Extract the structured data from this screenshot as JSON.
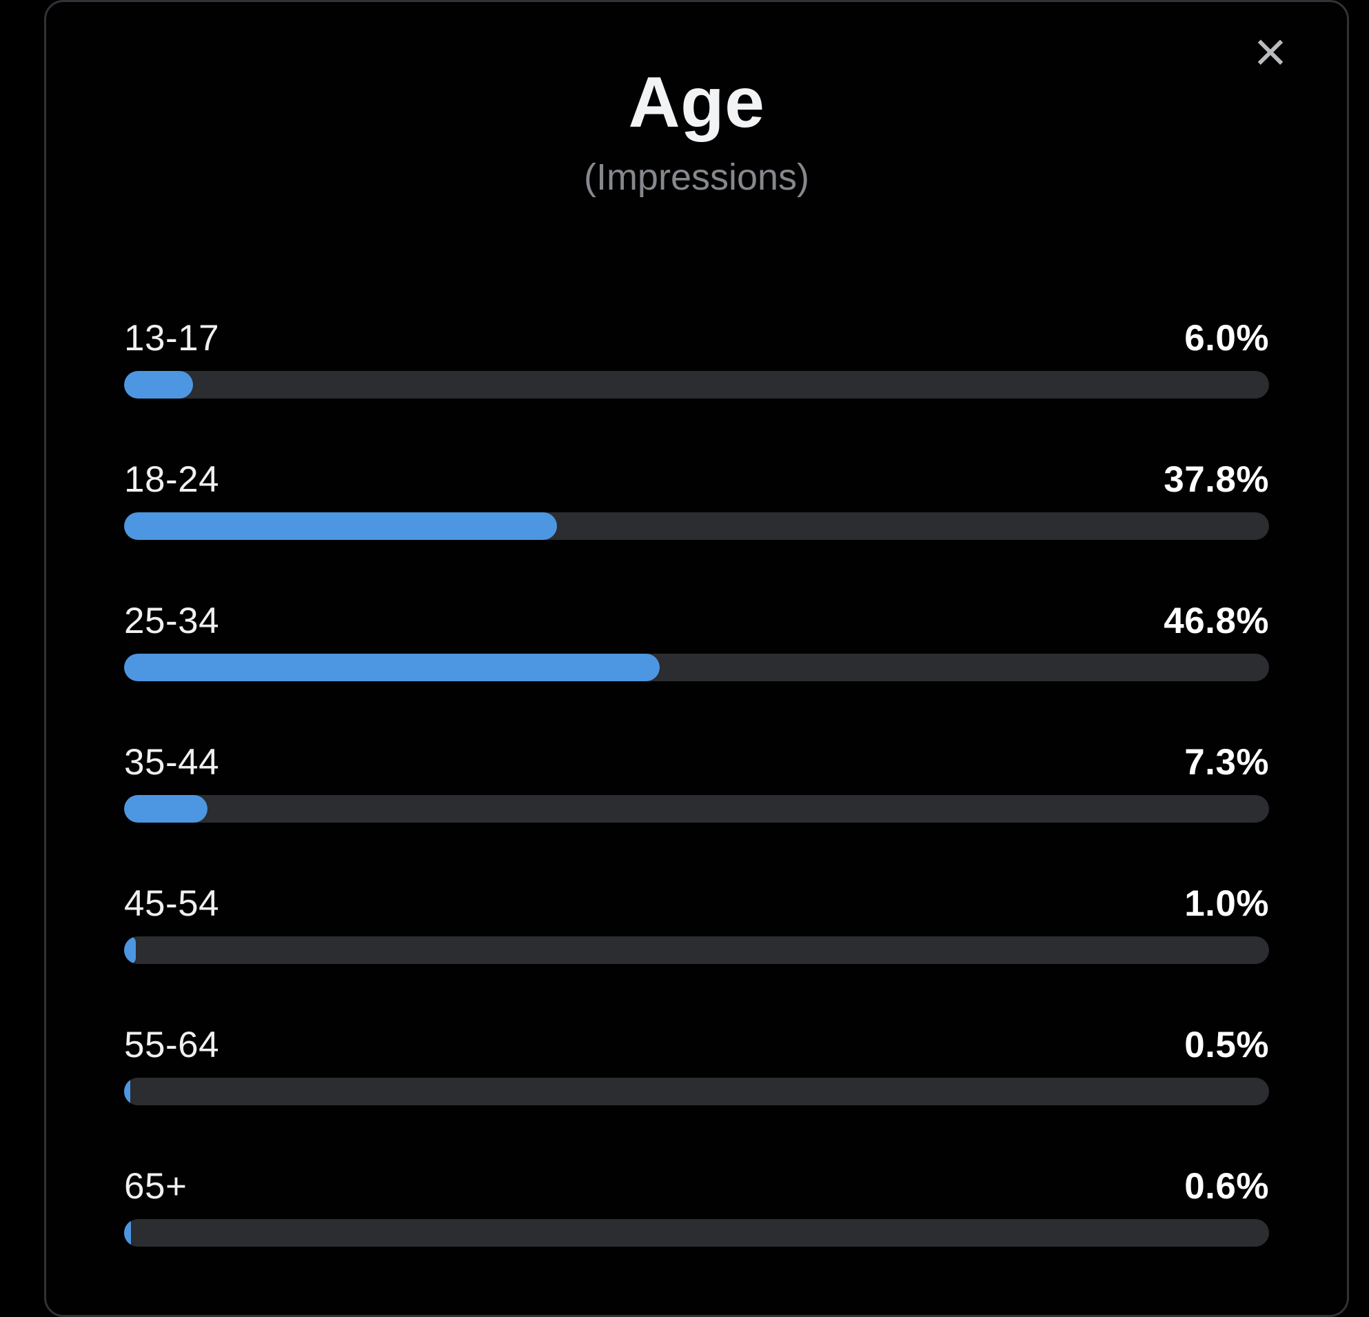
{
  "modal": {
    "title": "Age",
    "subtitle": "(Impressions)",
    "close_glyph": "×"
  },
  "colors": {
    "accent_blue": "#4d96e2",
    "bar_track": "#2b2d30",
    "modal_background": "#010101",
    "modal_border": "#2f3337",
    "title_text": "#f2f3f4",
    "subtitle_text": "#85888c",
    "percent_text": "#ffffff",
    "close_icon": "#b9bbbd"
  },
  "chart_data": {
    "type": "bar",
    "orientation": "horizontal",
    "title": "Age",
    "subtitle": "(Impressions)",
    "unit": "%",
    "xlim": [
      0,
      100
    ],
    "grid": false,
    "legend": false,
    "categories": [
      "13-17",
      "18-24",
      "25-34",
      "35-44",
      "45-54",
      "55-64",
      "65+"
    ],
    "values": [
      6.0,
      37.8,
      46.8,
      7.3,
      1.0,
      0.5,
      0.6
    ],
    "value_labels": [
      "6.0%",
      "37.8%",
      "46.8%",
      "7.3%",
      "1.0%",
      "0.5%",
      "0.6%"
    ],
    "bar_color": "#4d96e2",
    "track_color": "#2b2d30"
  }
}
